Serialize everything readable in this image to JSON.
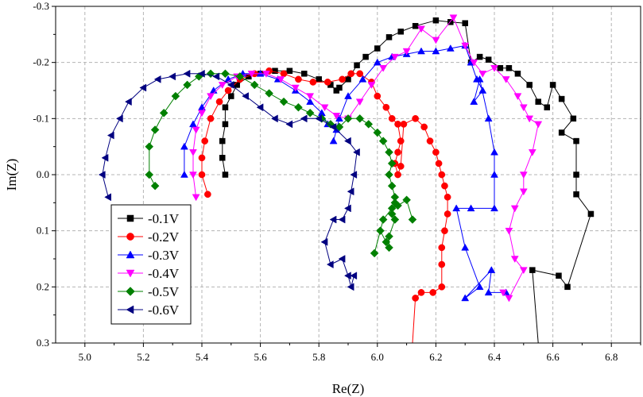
{
  "chart_data": {
    "type": "scatter",
    "xlabel": "Re(Z)",
    "ylabel": "Im(Z)",
    "xlim": [
      4.9,
      6.9
    ],
    "ylim": [
      -0.3,
      0.3
    ],
    "y_inverted": true,
    "xticks": [
      5.0,
      5.2,
      5.4,
      5.6,
      5.8,
      6.0,
      6.2,
      6.4,
      6.6,
      6.8
    ],
    "xtick_labels": [
      "5.0",
      "5.2",
      "5.4",
      "5.6",
      "5.8",
      "6.0",
      "6.2",
      "6.4",
      "6.6",
      "6.8"
    ],
    "yticks": [
      -0.3,
      -0.2,
      -0.1,
      0.0,
      0.1,
      0.2,
      0.3
    ],
    "ytick_labels": [
      "-0.3",
      "-0.2",
      "-0.1",
      "0.0",
      "0.1",
      "0.2",
      "0.3"
    ],
    "grid": true,
    "legend_position": "bottom-left",
    "series": [
      {
        "name": "-0.1V",
        "color": "#000000",
        "marker": "square",
        "points": [
          [
            5.48,
            0.0
          ],
          [
            5.47,
            -0.03
          ],
          [
            5.47,
            -0.06
          ],
          [
            5.48,
            -0.09
          ],
          [
            5.48,
            -0.12
          ],
          [
            5.5,
            -0.14
          ],
          [
            5.52,
            -0.16
          ],
          [
            5.56,
            -0.175
          ],
          [
            5.6,
            -0.18
          ],
          [
            5.65,
            -0.185
          ],
          [
            5.7,
            -0.185
          ],
          [
            5.75,
            -0.18
          ],
          [
            5.8,
            -0.17
          ],
          [
            5.84,
            -0.16
          ],
          [
            5.86,
            -0.15
          ],
          [
            5.87,
            -0.155
          ],
          [
            5.9,
            -0.17
          ],
          [
            5.93,
            -0.195
          ],
          [
            5.96,
            -0.21
          ],
          [
            6.0,
            -0.225
          ],
          [
            6.04,
            -0.245
          ],
          [
            6.08,
            -0.255
          ],
          [
            6.13,
            -0.265
          ],
          [
            6.2,
            -0.275
          ],
          [
            6.25,
            -0.272
          ],
          [
            6.3,
            -0.27
          ],
          [
            6.32,
            -0.2
          ],
          [
            6.35,
            -0.21
          ],
          [
            6.38,
            -0.205
          ],
          [
            6.42,
            -0.19
          ],
          [
            6.45,
            -0.19
          ],
          [
            6.48,
            -0.18
          ],
          [
            6.52,
            -0.16
          ],
          [
            6.55,
            -0.13
          ],
          [
            6.58,
            -0.12
          ],
          [
            6.6,
            -0.16
          ],
          [
            6.63,
            -0.135
          ],
          [
            6.67,
            -0.1
          ],
          [
            6.63,
            -0.075
          ],
          [
            6.68,
            -0.06
          ],
          [
            6.68,
            0.0
          ],
          [
            6.68,
            0.035
          ],
          [
            6.73,
            0.07
          ],
          [
            6.65,
            0.2
          ],
          [
            6.62,
            0.18
          ],
          [
            6.53,
            0.17
          ],
          [
            6.55,
            0.3
          ]
        ]
      },
      {
        "name": "-0.2V",
        "color": "#ff0000",
        "marker": "circle",
        "points": [
          [
            5.42,
            0.035
          ],
          [
            5.4,
            0.0
          ],
          [
            5.4,
            -0.03
          ],
          [
            5.41,
            -0.06
          ],
          [
            5.43,
            -0.1
          ],
          [
            5.46,
            -0.13
          ],
          [
            5.49,
            -0.15
          ],
          [
            5.53,
            -0.17
          ],
          [
            5.58,
            -0.18
          ],
          [
            5.63,
            -0.185
          ],
          [
            5.68,
            -0.18
          ],
          [
            5.73,
            -0.17
          ],
          [
            5.78,
            -0.165
          ],
          [
            5.83,
            -0.165
          ],
          [
            5.88,
            -0.17
          ],
          [
            5.91,
            -0.18
          ],
          [
            5.94,
            -0.18
          ],
          [
            5.98,
            -0.165
          ],
          [
            6.0,
            -0.14
          ],
          [
            6.03,
            -0.12
          ],
          [
            6.05,
            -0.1
          ],
          [
            6.07,
            -0.09
          ],
          [
            6.08,
            -0.06
          ],
          [
            6.07,
            -0.04
          ],
          [
            6.06,
            -0.02
          ],
          [
            6.07,
            0.0
          ],
          [
            6.08,
            -0.015
          ],
          [
            6.09,
            -0.09
          ],
          [
            6.13,
            -0.1
          ],
          [
            6.16,
            -0.085
          ],
          [
            6.18,
            -0.06
          ],
          [
            6.2,
            -0.04
          ],
          [
            6.21,
            -0.02
          ],
          [
            6.22,
            0.0
          ],
          [
            6.23,
            0.02
          ],
          [
            6.24,
            0.04
          ],
          [
            6.24,
            0.07
          ],
          [
            6.23,
            0.1
          ],
          [
            6.22,
            0.13
          ],
          [
            6.22,
            0.16
          ],
          [
            6.22,
            0.2
          ],
          [
            6.19,
            0.21
          ],
          [
            6.15,
            0.21
          ],
          [
            6.13,
            0.22
          ],
          [
            6.12,
            0.3
          ]
        ]
      },
      {
        "name": "-0.3V",
        "color": "#0000ff",
        "marker": "triangle-up",
        "points": [
          [
            5.34,
            0.0
          ],
          [
            5.34,
            -0.05
          ],
          [
            5.37,
            -0.09
          ],
          [
            5.4,
            -0.12
          ],
          [
            5.44,
            -0.15
          ],
          [
            5.49,
            -0.17
          ],
          [
            5.54,
            -0.18
          ],
          [
            5.6,
            -0.18
          ],
          [
            5.66,
            -0.17
          ],
          [
            5.72,
            -0.15
          ],
          [
            5.77,
            -0.13
          ],
          [
            5.81,
            -0.11
          ],
          [
            5.83,
            -0.09
          ],
          [
            5.86,
            -0.08
          ],
          [
            5.85,
            -0.06
          ],
          [
            5.87,
            -0.1
          ],
          [
            5.9,
            -0.14
          ],
          [
            5.95,
            -0.17
          ],
          [
            6.0,
            -0.2
          ],
          [
            6.05,
            -0.21
          ],
          [
            6.1,
            -0.215
          ],
          [
            6.15,
            -0.22
          ],
          [
            6.2,
            -0.22
          ],
          [
            6.25,
            -0.225
          ],
          [
            6.3,
            -0.23
          ],
          [
            6.32,
            -0.2
          ],
          [
            6.34,
            -0.17
          ],
          [
            6.36,
            -0.15
          ],
          [
            6.33,
            -0.13
          ],
          [
            6.35,
            -0.17
          ],
          [
            6.38,
            -0.1
          ],
          [
            6.4,
            -0.04
          ],
          [
            6.4,
            0.0
          ],
          [
            6.4,
            0.06
          ],
          [
            6.32,
            0.06
          ],
          [
            6.27,
            0.06
          ],
          [
            6.3,
            0.13
          ],
          [
            6.35,
            0.2
          ],
          [
            6.3,
            0.22
          ],
          [
            6.39,
            0.17
          ],
          [
            6.38,
            0.21
          ],
          [
            6.44,
            0.21
          ]
        ]
      },
      {
        "name": "-0.4V",
        "color": "#ff00ff",
        "marker": "triangle-down",
        "points": [
          [
            5.38,
            0.04
          ],
          [
            5.37,
            0.0
          ],
          [
            5.37,
            -0.04
          ],
          [
            5.38,
            -0.08
          ],
          [
            5.4,
            -0.11
          ],
          [
            5.43,
            -0.14
          ],
          [
            5.47,
            -0.16
          ],
          [
            5.52,
            -0.175
          ],
          [
            5.57,
            -0.18
          ],
          [
            5.62,
            -0.18
          ],
          [
            5.67,
            -0.17
          ],
          [
            5.72,
            -0.155
          ],
          [
            5.77,
            -0.14
          ],
          [
            5.82,
            -0.12
          ],
          [
            5.86,
            -0.105
          ],
          [
            5.9,
            -0.1
          ],
          [
            5.94,
            -0.13
          ],
          [
            5.98,
            -0.16
          ],
          [
            6.02,
            -0.19
          ],
          [
            6.06,
            -0.21
          ],
          [
            6.1,
            -0.22
          ],
          [
            6.15,
            -0.26
          ],
          [
            6.2,
            -0.24
          ],
          [
            6.26,
            -0.28
          ],
          [
            6.3,
            -0.23
          ],
          [
            6.33,
            -0.2
          ],
          [
            6.36,
            -0.18
          ],
          [
            6.4,
            -0.19
          ],
          [
            6.44,
            -0.17
          ],
          [
            6.48,
            -0.14
          ],
          [
            6.5,
            -0.12
          ],
          [
            6.52,
            -0.1
          ],
          [
            6.55,
            -0.09
          ],
          [
            6.53,
            -0.04
          ],
          [
            6.5,
            0.0
          ],
          [
            6.5,
            0.03
          ],
          [
            6.47,
            0.06
          ],
          [
            6.45,
            0.1
          ],
          [
            6.47,
            0.15
          ],
          [
            6.5,
            0.17
          ],
          [
            6.45,
            0.22
          ],
          [
            6.43,
            0.21
          ]
        ]
      },
      {
        "name": "-0.5V",
        "color": "#008000",
        "marker": "diamond",
        "points": [
          [
            5.24,
            0.02
          ],
          [
            5.22,
            0.0
          ],
          [
            5.22,
            -0.05
          ],
          [
            5.24,
            -0.08
          ],
          [
            5.27,
            -0.11
          ],
          [
            5.31,
            -0.14
          ],
          [
            5.35,
            -0.16
          ],
          [
            5.39,
            -0.175
          ],
          [
            5.43,
            -0.18
          ],
          [
            5.48,
            -0.18
          ],
          [
            5.53,
            -0.175
          ],
          [
            5.58,
            -0.16
          ],
          [
            5.63,
            -0.145
          ],
          [
            5.68,
            -0.13
          ],
          [
            5.73,
            -0.12
          ],
          [
            5.77,
            -0.11
          ],
          [
            5.81,
            -0.1
          ],
          [
            5.84,
            -0.09
          ],
          [
            5.87,
            -0.085
          ],
          [
            5.9,
            -0.1
          ],
          [
            5.94,
            -0.1
          ],
          [
            5.97,
            -0.09
          ],
          [
            6.0,
            -0.075
          ],
          [
            6.02,
            -0.06
          ],
          [
            6.04,
            -0.04
          ],
          [
            6.05,
            -0.02
          ],
          [
            6.04,
            0.0
          ],
          [
            6.05,
            0.02
          ],
          [
            6.06,
            0.04
          ],
          [
            6.06,
            0.05
          ],
          [
            6.05,
            0.07
          ],
          [
            6.06,
            0.08
          ],
          [
            6.04,
            0.11
          ],
          [
            6.04,
            0.13
          ],
          [
            6.03,
            0.12
          ],
          [
            6.01,
            0.1
          ],
          [
            5.99,
            0.14
          ],
          [
            6.02,
            0.08
          ],
          [
            6.05,
            0.06
          ],
          [
            6.07,
            0.055
          ],
          [
            6.1,
            0.045
          ],
          [
            6.12,
            0.08
          ]
        ]
      },
      {
        "name": "-0.6V",
        "color": "#000080",
        "marker": "triangle-left",
        "points": [
          [
            5.08,
            0.04
          ],
          [
            5.06,
            0.0
          ],
          [
            5.07,
            -0.03
          ],
          [
            5.09,
            -0.07
          ],
          [
            5.12,
            -0.1
          ],
          [
            5.15,
            -0.13
          ],
          [
            5.2,
            -0.155
          ],
          [
            5.25,
            -0.17
          ],
          [
            5.3,
            -0.175
          ],
          [
            5.35,
            -0.18
          ],
          [
            5.4,
            -0.18
          ],
          [
            5.45,
            -0.175
          ],
          [
            5.5,
            -0.16
          ],
          [
            5.55,
            -0.14
          ],
          [
            5.6,
            -0.12
          ],
          [
            5.65,
            -0.1
          ],
          [
            5.7,
            -0.09
          ],
          [
            5.75,
            -0.1
          ],
          [
            5.8,
            -0.1
          ],
          [
            5.85,
            -0.085
          ],
          [
            5.9,
            -0.06
          ],
          [
            5.93,
            -0.04
          ],
          [
            5.92,
            0.0
          ],
          [
            5.91,
            0.03
          ],
          [
            5.9,
            0.06
          ],
          [
            5.88,
            0.08
          ],
          [
            5.85,
            0.08
          ],
          [
            5.82,
            0.12
          ],
          [
            5.84,
            0.16
          ],
          [
            5.88,
            0.15
          ],
          [
            5.9,
            0.18
          ],
          [
            5.91,
            0.2
          ],
          [
            5.92,
            0.18
          ]
        ]
      }
    ]
  }
}
